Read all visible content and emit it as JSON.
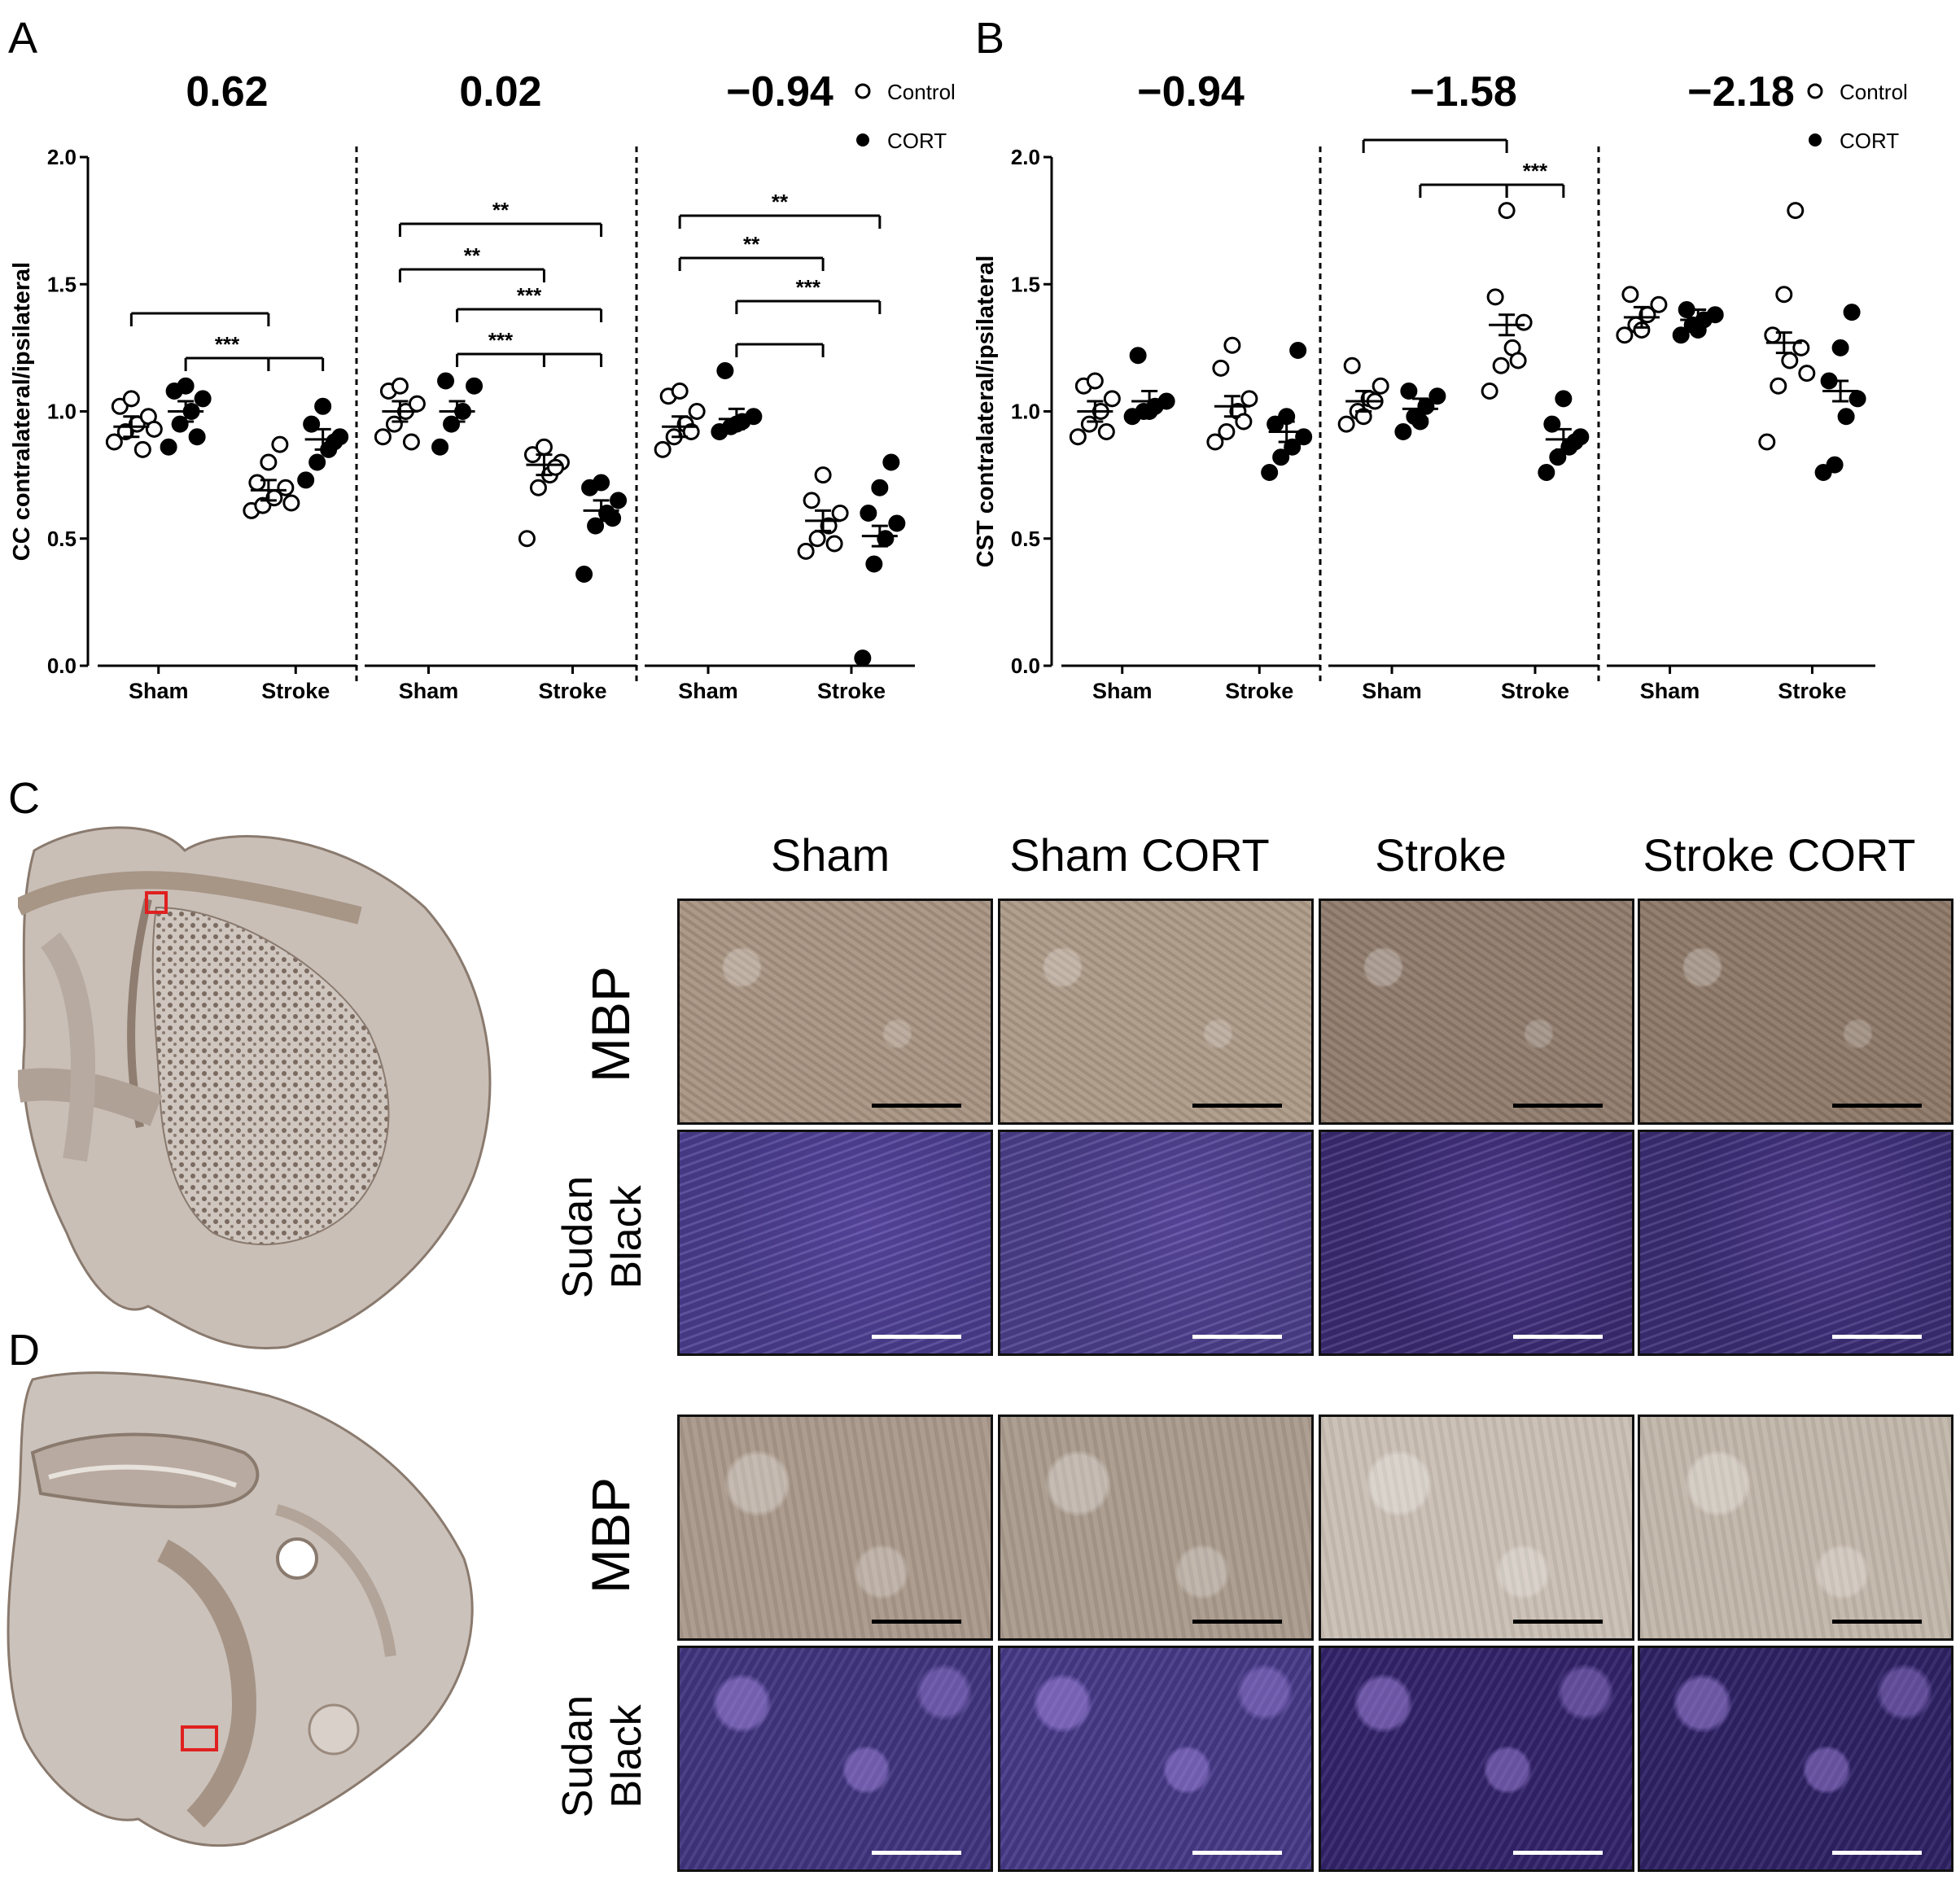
{
  "panel_labels": {
    "a": "A",
    "b": "B",
    "c": "C",
    "d": "D"
  },
  "chart_data": [
    {
      "type": "scatter",
      "panel": "A",
      "ylabel": "CC contralateral/ipsilateral",
      "ylim": [
        0,
        2
      ],
      "yticks": [
        "0.0",
        "0.5",
        "1.0",
        "1.5",
        "2.0"
      ],
      "legend": {
        "control": "Control",
        "cort": "CORT"
      },
      "subplots": [
        {
          "title": "0.62",
          "categories": [
            "Sham",
            "Stroke"
          ],
          "series": [
            {
              "name": "Sham Control",
              "values": [
                0.88,
                0.92,
                0.95,
                0.98,
                1.02,
                1.05,
                0.85,
                0.93
              ],
              "mean": 0.94
            },
            {
              "name": "Sham CORT",
              "values": [
                0.86,
                0.95,
                1.0,
                1.05,
                1.08,
                1.1,
                0.9
              ],
              "mean": 1.0
            },
            {
              "name": "Stroke Control",
              "values": [
                0.61,
                0.63,
                0.66,
                0.7,
                0.72,
                0.8,
                0.87,
                0.64
              ],
              "mean": 0.69
            },
            {
              "name": "Stroke CORT",
              "values": [
                0.73,
                0.8,
                0.85,
                0.9,
                0.95,
                1.02,
                0.88
              ],
              "mean": 0.89
            }
          ],
          "sig": [
            {
              "label": "",
              "from": "g0",
              "to": "g2"
            },
            {
              "label": "***",
              "from": "g1",
              "to": "g2"
            },
            {
              "label": "",
              "from": "g2",
              "to": "g3"
            }
          ]
        },
        {
          "title": "0.02",
          "categories": [
            "Sham",
            "Stroke"
          ],
          "series": [
            {
              "name": "Sham Control",
              "values": [
                0.9,
                0.95,
                1.0,
                1.03,
                1.08,
                1.1,
                0.88
              ],
              "mean": 1.0
            },
            {
              "name": "Sham CORT",
              "values": [
                0.86,
                0.95,
                1.0,
                1.1,
                1.12
              ],
              "mean": 1.0
            },
            {
              "name": "Stroke Control",
              "values": [
                0.5,
                0.7,
                0.75,
                0.8,
                0.83,
                0.86,
                0.78
              ],
              "mean": 0.79
            },
            {
              "name": "Stroke CORT",
              "values": [
                0.36,
                0.55,
                0.6,
                0.65,
                0.7,
                0.72,
                0.58
              ],
              "mean": 0.61
            }
          ],
          "sig": [
            {
              "label": "**",
              "from": "g0",
              "to": "g3"
            },
            {
              "label": "**",
              "from": "g0",
              "to": "g2"
            },
            {
              "label": "***",
              "from": "g1",
              "to": "g3"
            },
            {
              "label": "***",
              "from": "g1",
              "to": "g2"
            },
            {
              "label": "",
              "from": "g2",
              "to": "g3"
            }
          ]
        },
        {
          "title": "−0.94",
          "categories": [
            "Sham",
            "Stroke"
          ],
          "series": [
            {
              "name": "Sham Control",
              "values": [
                0.85,
                0.9,
                0.95,
                1.0,
                1.06,
                1.08,
                0.92
              ],
              "mean": 0.94
            },
            {
              "name": "Sham CORT",
              "values": [
                0.92,
                0.94,
                0.96,
                0.98,
                1.16,
                0.95
              ],
              "mean": 0.97
            },
            {
              "name": "Stroke Control",
              "values": [
                0.45,
                0.5,
                0.55,
                0.6,
                0.65,
                0.75,
                0.48
              ],
              "mean": 0.57
            },
            {
              "name": "Stroke CORT",
              "values": [
                0.03,
                0.4,
                0.5,
                0.56,
                0.6,
                0.7,
                0.8
              ],
              "mean": 0.51
            }
          ],
          "sig": [
            {
              "label": "**",
              "from": "g0",
              "to": "g3"
            },
            {
              "label": "**",
              "from": "g0",
              "to": "g2"
            },
            {
              "label": "***",
              "from": "g1",
              "to": "g3"
            },
            {
              "label": "",
              "from": "g1",
              "to": "g2"
            }
          ]
        }
      ]
    },
    {
      "type": "scatter",
      "panel": "B",
      "ylabel": "CST contralateral/ipsilateral",
      "ylim": [
        0,
        2
      ],
      "yticks": [
        "0.0",
        "0.5",
        "1.0",
        "1.5",
        "2.0"
      ],
      "legend": {
        "control": "Control",
        "cort": "CORT"
      },
      "subplots": [
        {
          "title": "−0.94",
          "categories": [
            "Sham",
            "Stroke"
          ],
          "series": [
            {
              "name": "Sham Control",
              "values": [
                0.9,
                0.95,
                1.0,
                1.05,
                1.1,
                1.12,
                0.92
              ],
              "mean": 1.0
            },
            {
              "name": "Sham CORT",
              "values": [
                0.98,
                1.0,
                1.02,
                1.04,
                1.22,
                1.0
              ],
              "mean": 1.04
            },
            {
              "name": "Stroke Control",
              "values": [
                0.88,
                0.92,
                1.0,
                1.05,
                1.17,
                1.26,
                0.96
              ],
              "mean": 1.02
            },
            {
              "name": "Stroke CORT",
              "values": [
                0.76,
                0.82,
                0.86,
                0.9,
                0.95,
                0.98,
                1.24
              ],
              "mean": 0.92
            }
          ],
          "sig": []
        },
        {
          "title": "−1.58",
          "categories": [
            "Sham",
            "Stroke"
          ],
          "series": [
            {
              "name": "Sham Control",
              "values": [
                0.95,
                1.0,
                1.05,
                1.1,
                1.18,
                0.98,
                1.04
              ],
              "mean": 1.04
            },
            {
              "name": "Sham CORT",
              "values": [
                0.92,
                0.98,
                1.02,
                1.06,
                1.08,
                0.96
              ],
              "mean": 1.01
            },
            {
              "name": "Stroke Control",
              "values": [
                1.08,
                1.18,
                1.25,
                1.35,
                1.45,
                1.79,
                1.2
              ],
              "mean": 1.34
            },
            {
              "name": "Stroke CORT",
              "values": [
                0.76,
                0.82,
                0.86,
                0.9,
                0.95,
                1.05,
                0.88
              ],
              "mean": 0.89
            }
          ],
          "sig": [
            {
              "label": "",
              "from": "g0",
              "to": "g2"
            },
            {
              "label": "",
              "from": "g1",
              "to": "g2"
            },
            {
              "label": "***",
              "from": "g2",
              "to": "g3"
            }
          ]
        },
        {
          "title": "−2.18",
          "categories": [
            "Sham",
            "Stroke"
          ],
          "series": [
            {
              "name": "Sham Control",
              "values": [
                1.3,
                1.34,
                1.38,
                1.42,
                1.46,
                1.32
              ],
              "mean": 1.37
            },
            {
              "name": "Sham CORT",
              "values": [
                1.3,
                1.34,
                1.36,
                1.38,
                1.4,
                1.32
              ],
              "mean": 1.36
            },
            {
              "name": "Stroke Control",
              "values": [
                0.88,
                1.1,
                1.2,
                1.25,
                1.3,
                1.46,
                1.79,
                1.15
              ],
              "mean": 1.27
            },
            {
              "name": "Stroke CORT",
              "values": [
                0.76,
                0.79,
                0.98,
                1.05,
                1.12,
                1.25,
                1.39
              ],
              "mean": 1.08
            }
          ],
          "sig": []
        }
      ]
    }
  ],
  "panel_c": {
    "columns": [
      "Sham",
      "Sham CORT",
      "Stroke",
      "Stroke CORT"
    ],
    "row_mbp": "MBP",
    "row_sudan_1": "Sudan",
    "row_sudan_2": "Black"
  },
  "panel_d": {
    "row_mbp": "MBP",
    "row_sudan_1": "Sudan",
    "row_sudan_2": "Black"
  },
  "colors": {
    "mbp_tint": "#a89482",
    "sudan_tint": "#4a3a8a",
    "scalebar_dark": "#000000",
    "scalebar_light": "#ffffff",
    "roi_box": "#e02020"
  }
}
